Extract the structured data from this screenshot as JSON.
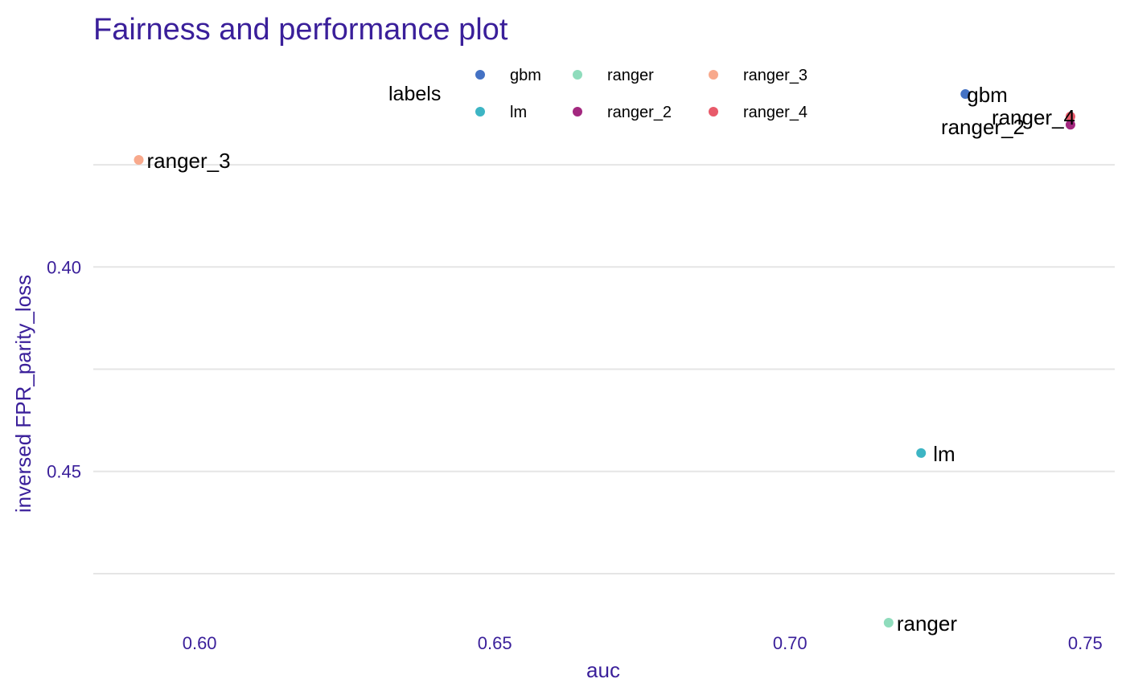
{
  "colors": {
    "accent": "#3a1f9a",
    "grid": "#e5e5e5",
    "text": "#000000"
  },
  "chart_data": {
    "type": "scatter",
    "title": "Fairness and performance plot",
    "xlabel": "auc",
    "ylabel": "inversed FPR_parity_loss",
    "xlim": [
      0.582,
      0.755
    ],
    "ylim": [
      0.374,
      0.487
    ],
    "y_reversed": true,
    "xticks": [
      {
        "value": 0.6,
        "label": "0.60"
      },
      {
        "value": 0.65,
        "label": "0.65"
      },
      {
        "value": 0.7,
        "label": "0.70"
      },
      {
        "value": 0.75,
        "label": "0.75"
      }
    ],
    "yticks": [
      {
        "value": 0.4,
        "label": "0.40"
      },
      {
        "value": 0.45,
        "label": "0.45"
      }
    ],
    "ygrid": [
      0.375,
      0.4,
      0.425,
      0.45,
      0.475
    ],
    "grid": true,
    "legend": {
      "title": "labels",
      "position": "top",
      "entries": [
        {
          "name": "gbm",
          "color": "#4472c4"
        },
        {
          "name": "lm",
          "color": "#3db5c4"
        },
        {
          "name": "ranger",
          "color": "#8fdcbc"
        },
        {
          "name": "ranger_2",
          "color": "#a3287f"
        },
        {
          "name": "ranger_3",
          "color": "#f8a98c"
        },
        {
          "name": "ranger_4",
          "color": "#e85a6a"
        }
      ]
    },
    "series": [
      {
        "name": "gbm",
        "x": 0.7297,
        "y": 0.3577,
        "color": "#4472c4"
      },
      {
        "name": "ranger_4",
        "x": 0.7475,
        "y": 0.3632,
        "color": "#e85a6a"
      },
      {
        "name": "ranger_2",
        "x": 0.7475,
        "y": 0.3652,
        "color": "#a3287f"
      },
      {
        "name": "ranger_3",
        "x": 0.5897,
        "y": 0.3738,
        "color": "#f8a98c"
      },
      {
        "name": "lm",
        "x": 0.7222,
        "y": 0.4455,
        "color": "#3db5c4"
      },
      {
        "name": "ranger",
        "x": 0.7167,
        "y": 0.487,
        "color": "#8fdcbc"
      }
    ]
  }
}
